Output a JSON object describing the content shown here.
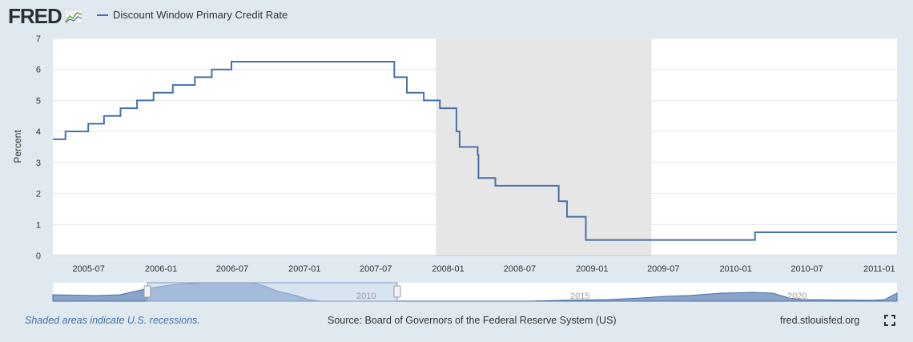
{
  "header": {
    "logo_text": "FRED",
    "logo_icon": "line-chart-icon",
    "legend_label": "Discount Window Primary Credit Rate"
  },
  "footer": {
    "recession_note": "Shaded areas indicate U.S. recessions.",
    "source": "Source: Board of Governors of the Federal Reserve System (US)",
    "site": "fred.stlouisfed.org",
    "fullscreen_icon": "fullscreen-icon"
  },
  "colors": {
    "page_bg": "#e1e9f0",
    "plot_bg": "#ffffff",
    "series_line": "#4572a7",
    "recession_shade": "#e6e6e6",
    "grid": "#e6e6e6",
    "navigator_fill": "#7d9ac3",
    "navigator_window": "#b9cde6"
  },
  "chart_data": {
    "type": "line",
    "step": true,
    "ylabel": "Percent",
    "ylim": [
      0,
      7
    ],
    "yticks": [
      0,
      1,
      2,
      3,
      4,
      5,
      6,
      7
    ],
    "xlim": [
      "2005-04-01",
      "2011-02-15"
    ],
    "xticks": [
      "2005-07",
      "2006-01",
      "2006-07",
      "2007-01",
      "2007-07",
      "2008-01",
      "2008-07",
      "2009-01",
      "2009-07",
      "2010-01",
      "2010-07",
      "2011-01"
    ],
    "grid": true,
    "legend": "top-left",
    "recessions": [
      {
        "start": "2007-12-01",
        "end": "2009-06-01"
      }
    ],
    "series": [
      {
        "name": "Discount Window Primary Credit Rate",
        "x": [
          "2005-04-01",
          "2005-05-03",
          "2005-06-30",
          "2005-08-09",
          "2005-09-20",
          "2005-11-01",
          "2005-12-13",
          "2006-01-31",
          "2006-03-28",
          "2006-05-10",
          "2006-06-29",
          "2007-08-17",
          "2007-09-18",
          "2007-10-31",
          "2007-12-11",
          "2008-01-22",
          "2008-01-30",
          "2008-03-16",
          "2008-03-18",
          "2008-04-30",
          "2008-10-08",
          "2008-10-29",
          "2008-12-16",
          "2010-02-19",
          "2011-02-15"
        ],
        "values": [
          3.75,
          4.0,
          4.25,
          4.5,
          4.75,
          5.0,
          5.25,
          5.5,
          5.75,
          6.0,
          6.25,
          5.75,
          5.25,
          5.0,
          4.75,
          4.0,
          3.5,
          3.25,
          2.5,
          2.25,
          1.75,
          1.25,
          0.5,
          0.75,
          0.75
        ]
      }
    ]
  },
  "navigator": {
    "labels": [
      "2010",
      "2015",
      "2020"
    ]
  }
}
